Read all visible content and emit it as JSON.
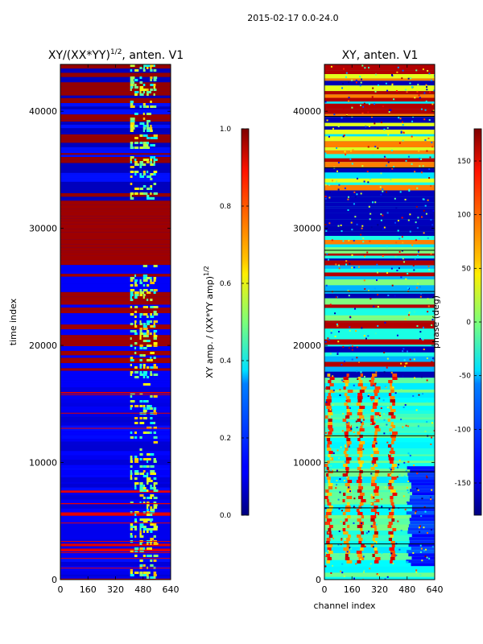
{
  "figure_title": "2015-02-17 0.0-24.0",
  "chart_data": [
    {
      "type": "heatmap",
      "title": "XY/(XX*YY)^1/2, anten. V1",
      "title_base": "XY/(XX*YY)",
      "title_exp": "1/2",
      "title_rest": ", anten. V1",
      "xlabel": "",
      "ylabel": "time index",
      "xlim": [
        0,
        640
      ],
      "ylim": [
        0,
        44000
      ],
      "xticks": [
        "0",
        "160",
        "320",
        "480",
        "640"
      ],
      "yticks": [
        "0",
        "10000",
        "20000",
        "30000",
        "40000"
      ],
      "colorbar": {
        "label": "XY amp. / (XX*YY amp)^1/2",
        "label_base": "XY amp. / (XX*YY amp)",
        "label_exp": "1/2",
        "range": [
          0.0,
          1.0
        ],
        "ticks": [
          "0.0",
          "0.2",
          "0.4",
          "0.6",
          "0.8",
          "1.0"
        ],
        "colormap": "jet"
      }
    },
    {
      "type": "heatmap",
      "title": "XY, anten. V1",
      "xlabel": "channel index",
      "ylabel": "",
      "xlim": [
        0,
        640
      ],
      "ylim": [
        0,
        44000
      ],
      "xticks": [
        "0",
        "160",
        "320",
        "480",
        "640"
      ],
      "yticks": [
        "0",
        "10000",
        "20000",
        "30000",
        "40000"
      ],
      "colorbar": {
        "label": "phase (deg)",
        "range": [
          -180,
          180
        ],
        "ticks": [
          "-150",
          "-100",
          "-50",
          "0",
          "50",
          "100",
          "150"
        ],
        "colormap": "jet"
      }
    }
  ]
}
